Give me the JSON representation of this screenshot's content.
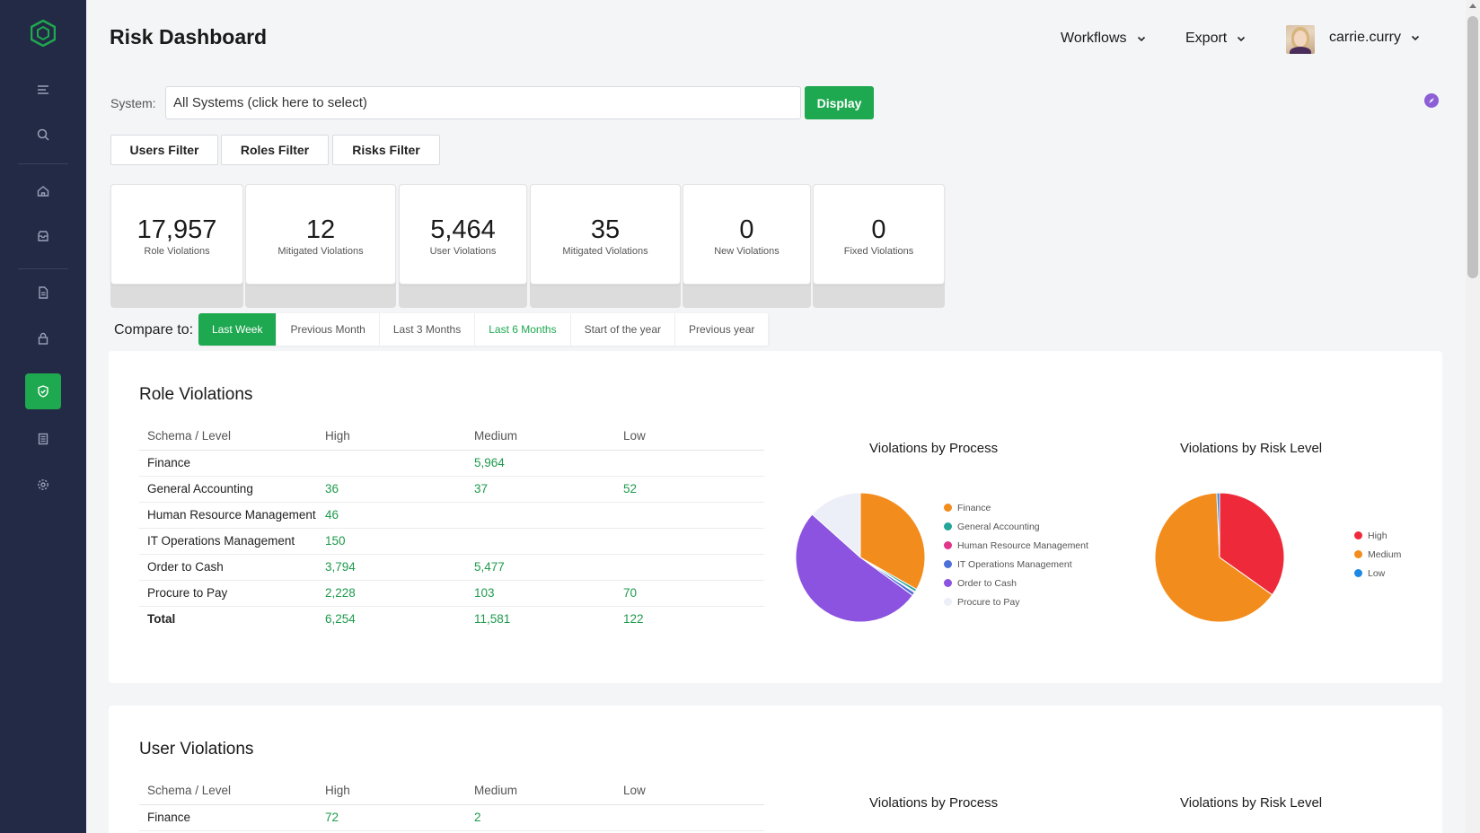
{
  "header": {
    "title": "Risk Dashboard",
    "menus": [
      {
        "label": "Workflows"
      },
      {
        "label": "Export"
      }
    ],
    "user": {
      "name": "carrie.curry"
    }
  },
  "system": {
    "label": "System:",
    "value": "All Systems (click here to select)",
    "display_label": "Display"
  },
  "filters": [
    "Users Filter",
    "Roles Filter",
    "Risks Filter"
  ],
  "stats": [
    {
      "value": "17,957",
      "label": "Role Violations"
    },
    {
      "value": "12",
      "label": "Mitigated Violations"
    },
    {
      "value": "5,464",
      "label": "User Violations"
    },
    {
      "value": "35",
      "label": "Mitigated Violations"
    },
    {
      "value": "0",
      "label": "New Violations"
    },
    {
      "value": "0",
      "label": "Fixed Violations"
    }
  ],
  "compare": {
    "label": "Compare to:",
    "tabs": [
      "Last Week",
      "Previous Month",
      "Last 3 Months",
      "Last 6 Months",
      "Start of the year",
      "Previous year"
    ],
    "selected": "Last Week"
  },
  "role_violations": {
    "title": "Role Violations",
    "columns": [
      "Schema / Level",
      "High",
      "Medium",
      "Low"
    ],
    "rows": [
      [
        "Finance",
        "",
        "5,964",
        ""
      ],
      [
        "General Accounting",
        "36",
        "37",
        "52"
      ],
      [
        "Human Resource Management",
        "46",
        "",
        ""
      ],
      [
        "IT Operations Management",
        "150",
        "",
        ""
      ],
      [
        "Order to Cash",
        "3,794",
        "5,477",
        ""
      ],
      [
        "Procure to Pay",
        "2,228",
        "103",
        "70"
      ]
    ],
    "total": [
      "Total",
      "6,254",
      "11,581",
      "122"
    ],
    "process_chart_title": "Violations by Process",
    "risk_chart_title": "Violations by Risk Level"
  },
  "user_violations": {
    "title": "User Violations",
    "columns": [
      "Schema / Level",
      "High",
      "Medium",
      "Low"
    ],
    "rows": [
      [
        "Finance",
        "72",
        "2",
        ""
      ]
    ],
    "process_chart_title": "Violations by Process",
    "risk_chart_title": "Violations by Risk Level"
  },
  "chart_data": [
    {
      "type": "pie",
      "title": "Violations by Process",
      "categories": [
        "Finance",
        "General Accounting",
        "Human Resource Management",
        "IT Operations Management",
        "Order to Cash",
        "Procure to Pay"
      ],
      "values": [
        5964,
        125,
        46,
        150,
        9271,
        2401
      ],
      "colors": [
        "#f28c1c",
        "#26a69a",
        "#e0358a",
        "#4c6fd8",
        "#8c52e0",
        "#eceef8"
      ],
      "legend": "right"
    },
    {
      "type": "pie",
      "title": "Violations by Risk Level",
      "categories": [
        "High",
        "Medium",
        "Low"
      ],
      "values": [
        6254,
        11581,
        122
      ],
      "colors": [
        "#ee2a3a",
        "#f28c1c",
        "#1e88e5"
      ],
      "legend": "right"
    }
  ]
}
